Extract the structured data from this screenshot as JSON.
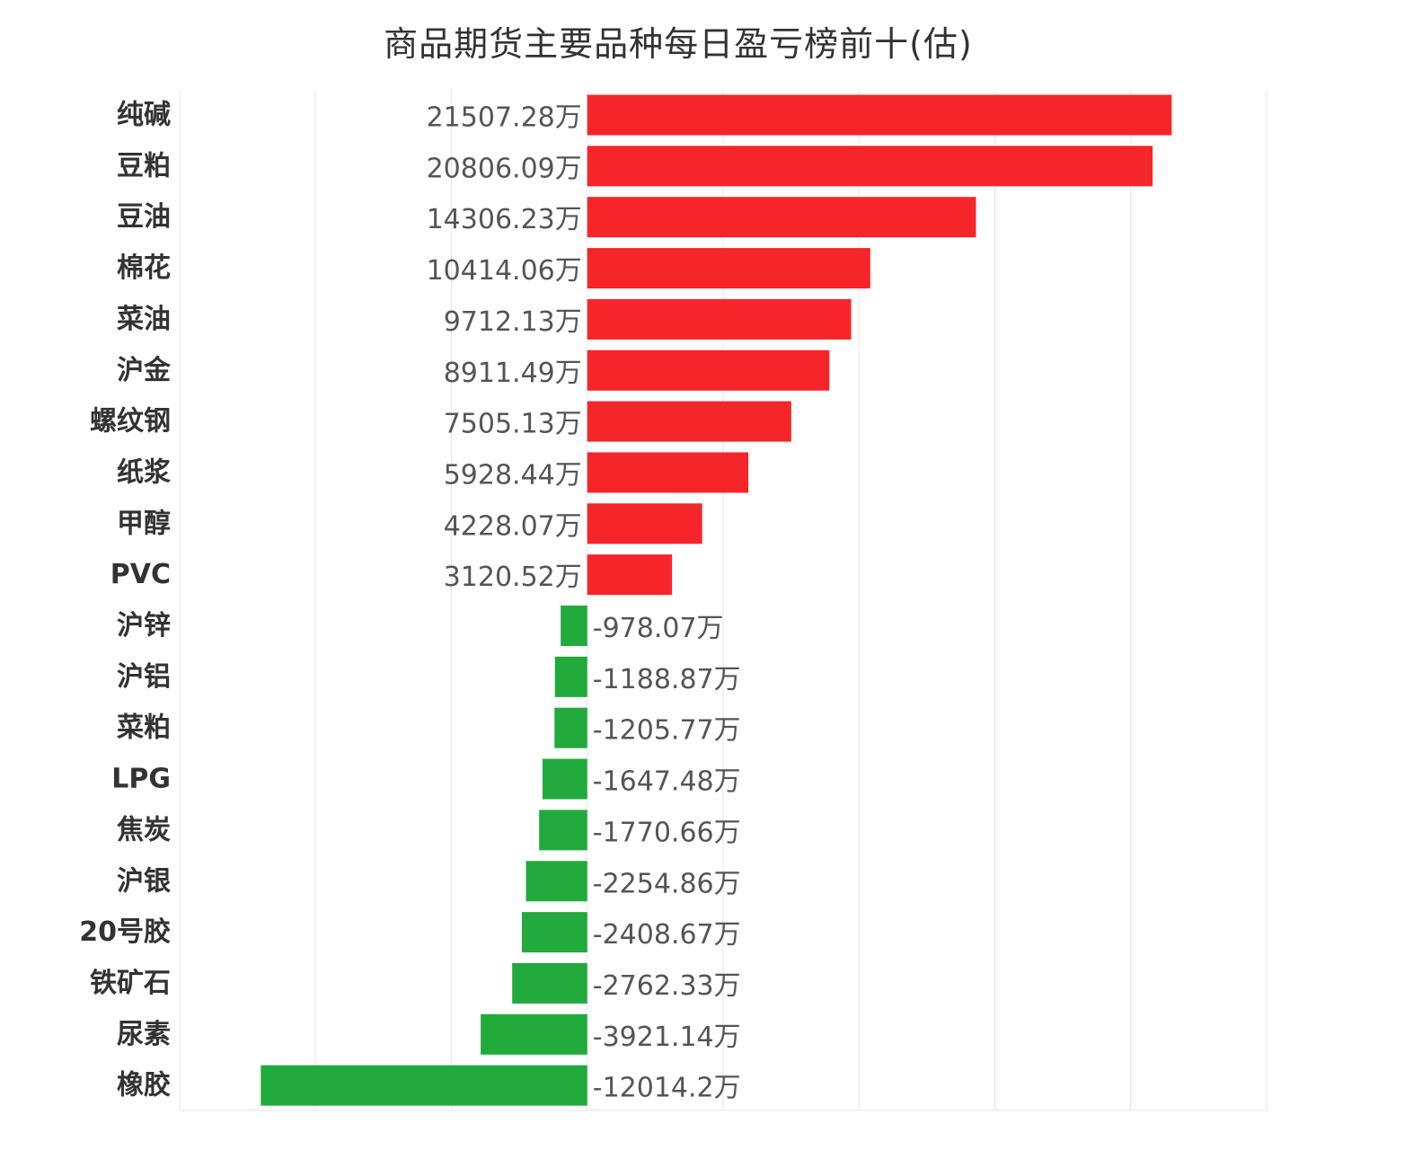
{
  "chart_data": {
    "type": "bar",
    "orientation": "horizontal",
    "title": "商品期货主要品种每日盈亏榜前十(估)",
    "unit": "万",
    "categories": [
      "纯碱",
      "豆粕",
      "豆油",
      "棉花",
      "菜油",
      "沪金",
      "螺纹钢",
      "纸浆",
      "甲醇",
      "PVC",
      "沪锌",
      "沪铝",
      "菜粕",
      "LPG",
      "焦炭",
      "沪银",
      "20号胶",
      "铁矿石",
      "尿素",
      "橡胶"
    ],
    "values": [
      21507.28,
      20806.09,
      14306.23,
      10414.06,
      9712.13,
      8911.49,
      7505.13,
      5928.44,
      4228.07,
      3120.52,
      -978.07,
      -1188.87,
      -1205.77,
      -1647.48,
      -1770.66,
      -2254.86,
      -2408.67,
      -2762.33,
      -3921.14,
      -12014.2
    ],
    "value_labels": [
      "21507.28万",
      "20806.09万",
      "14306.23万",
      "10414.06万",
      "9712.13万",
      "8911.49万",
      "7505.13万",
      "5928.44万",
      "4228.07万",
      "3120.52万",
      "-978.07万",
      "-1188.87万",
      "-1205.77万",
      "-1647.48万",
      "-1770.66万",
      "-2254.86万",
      "-2408.67万",
      "-2762.33万",
      "-3921.14万",
      "-12014.2万"
    ],
    "xlim": [
      -15000,
      25000
    ],
    "gridlines": [
      -15000,
      -10000,
      -5000,
      0,
      5000,
      10000,
      15000,
      20000,
      25000
    ],
    "grid": true,
    "colors": {
      "positive": "#f52529",
      "negative": "#22aa3c",
      "grid": "#e6e6e6",
      "title": "#333333",
      "category_text": "#333333",
      "value_text": "#555555"
    }
  }
}
